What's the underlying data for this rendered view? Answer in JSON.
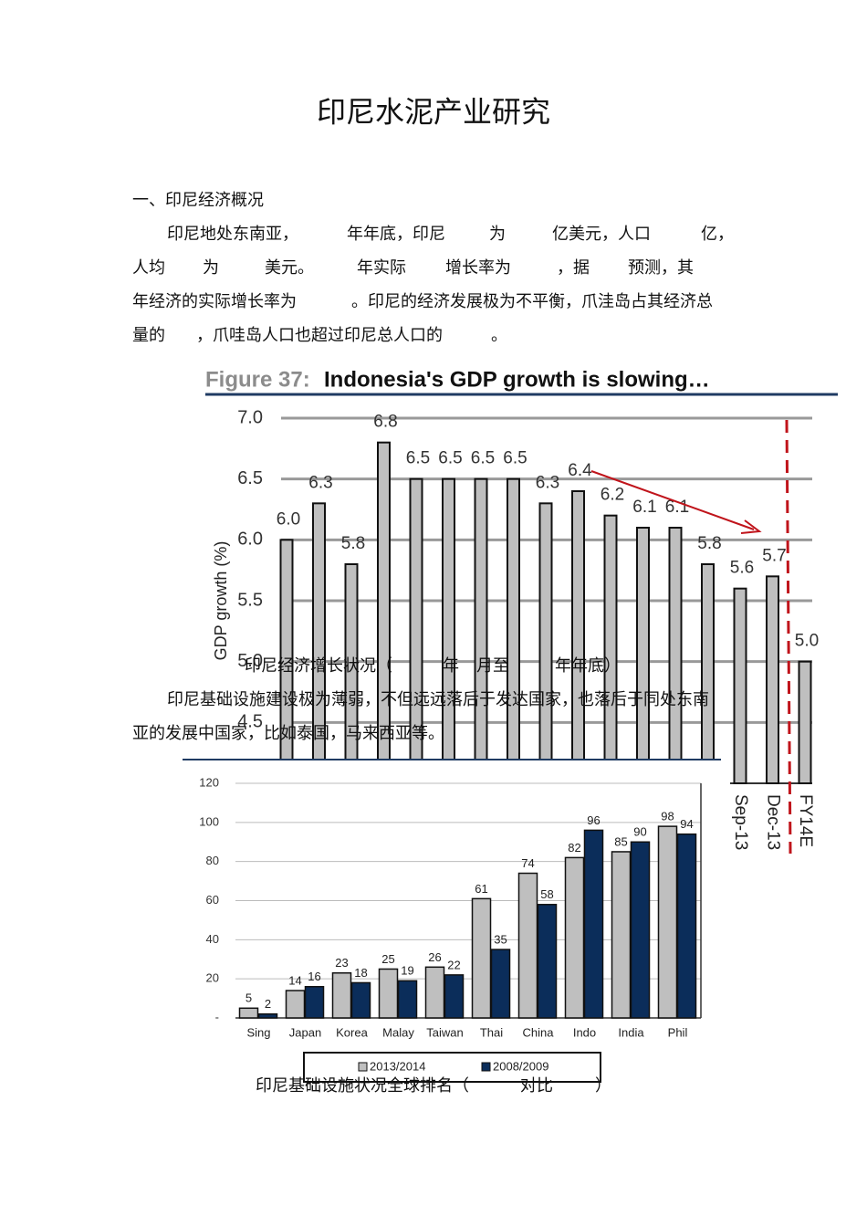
{
  "title": "印尼水泥产业研究",
  "section": "一、印尼经济概况",
  "text_lines": [
    [
      "印尼地处东南亚，",
      "年年底，印尼",
      "为",
      "亿美元，人口",
      "亿，"
    ],
    [
      "人均",
      "为",
      "美元。",
      "年实际",
      "增长率为",
      "，据",
      "预测，其"
    ],
    [
      "年经济的实际增长率为",
      "。印尼的经济发展极为不平衡，爪洼岛占其经济总"
    ],
    [
      "量的",
      "，爪哇岛人口也超过印尼总人口的",
      "。"
    ],
    [
      "印尼经济增长状况（",
      "年",
      "月至",
      "年年底）"
    ],
    [
      "印尼基础设施建设极为薄弱，不但远远落后于发达国家，也落后于同处东南"
    ],
    [
      "亚的发展中国家，比如泰国，马来西亚等。"
    ],
    [
      "印尼基础设施状况全球排名（",
      "对比",
      "）"
    ]
  ],
  "chart_data": [
    {
      "type": "bar",
      "figure_label": "Figure 37:",
      "title": "Indonesia's GDP growth is slowing…",
      "y_label": "GDP growth (%)",
      "categories": [
        null,
        null,
        null,
        null,
        null,
        null,
        null,
        null,
        null,
        null,
        null,
        null,
        null,
        null,
        "Sep-13",
        "Dec-13",
        "FY14E"
      ],
      "values": [
        6.0,
        6.3,
        5.8,
        6.8,
        6.5,
        6.5,
        6.5,
        6.5,
        6.3,
        6.4,
        6.2,
        6.1,
        6.1,
        5.8,
        5.6,
        5.7,
        5.0
      ],
      "value_labels": [
        "6.0",
        "6.3",
        "5.8",
        "6.8",
        "6.5",
        "6.5",
        "6.5",
        "6.5",
        "6.3",
        "6.4",
        "6.2",
        "6.1",
        "6.1",
        "5.8",
        "5.6",
        "5.7",
        "5.0"
      ],
      "color": "#bfbfbf",
      "ylim": [
        4.0,
        7.0
      ],
      "yticks": [
        4.5,
        {
          "value": 5.0,
          "label": "5.0"
        },
        5.5,
        {
          "value": 6.0,
          "label": "6.0"
        },
        6.5,
        {
          "value": 7.0,
          "label": "7.0"
        }
      ],
      "grid": true
    },
    {
      "type": "bar",
      "categories": [
        "Sing",
        "Japan",
        "Korea",
        "Malay",
        "Taiwan",
        "Thai",
        "China",
        "Indo",
        "India",
        "Phil"
      ],
      "series": [
        {
          "name": "2013/2014",
          "color": "#bfbfbf",
          "values": [
            5,
            14,
            23,
            25,
            26,
            61,
            74,
            82,
            85,
            98
          ]
        },
        {
          "name": "2008/2009",
          "color": "#0b2d5a",
          "values": [
            2,
            16,
            18,
            19,
            22,
            35,
            58,
            96,
            90,
            94
          ]
        }
      ],
      "ylim": [
        0,
        120
      ],
      "yticks": [
        {
          "value": 0,
          "label": "-"
        },
        20,
        40,
        60,
        80,
        100,
        120
      ],
      "grid": true
    }
  ]
}
